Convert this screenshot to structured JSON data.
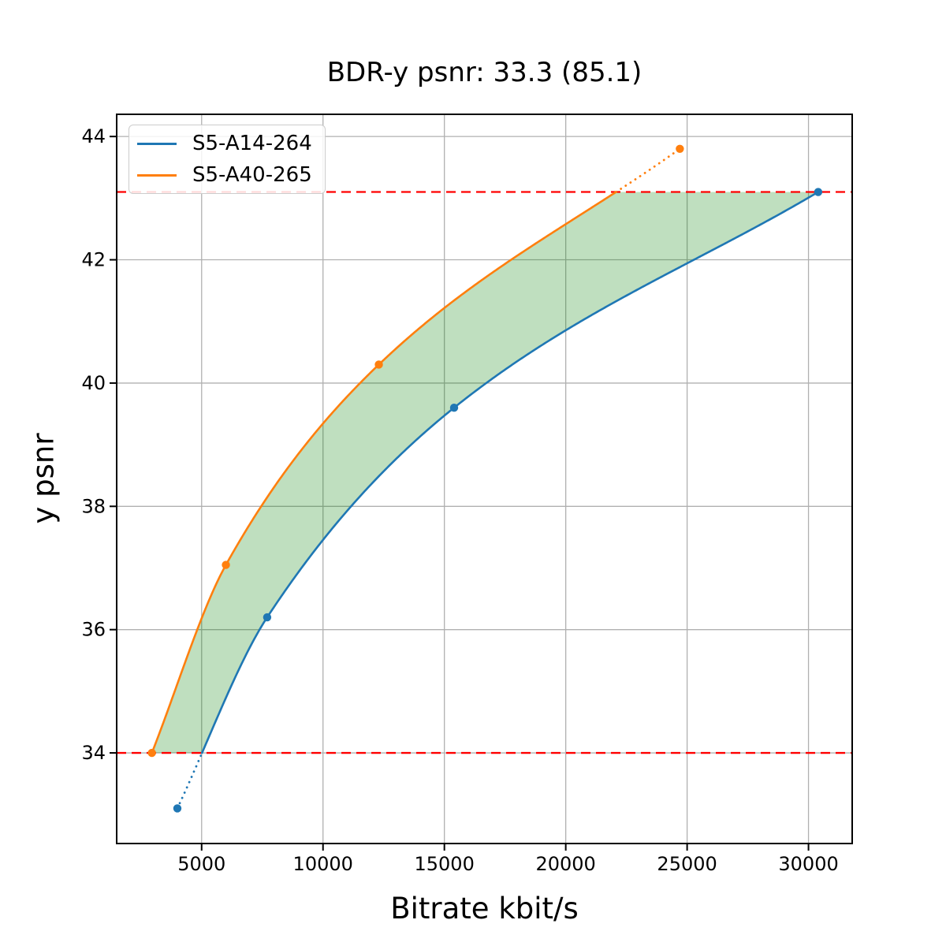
{
  "title": "BDR-y psnr: 33.3 (85.1)",
  "chart_data": {
    "type": "line",
    "title": "BDR-y psnr: 33.3 (85.1)",
    "xlabel": "Bitrate kbit/s",
    "ylabel": "y psnr",
    "xlim": [
      1500,
      31800
    ],
    "ylim": [
      32.53,
      44.36
    ],
    "xticks": [
      5000,
      10000,
      15000,
      20000,
      25000,
      30000
    ],
    "yticks": [
      34,
      36,
      38,
      40,
      42,
      44
    ],
    "grid": true,
    "grid_color": "#b0b0b0",
    "legend_position": "upper left",
    "series": [
      {
        "name": "S5-A14-264",
        "color": "#1f77b4",
        "points": [
          [
            4000,
            33.1
          ],
          [
            7700,
            36.2
          ],
          [
            15400,
            39.6
          ],
          [
            30400,
            43.1
          ]
        ]
      },
      {
        "name": "S5-A40-265",
        "color": "#ff7f0e",
        "points": [
          [
            2950,
            34.0
          ],
          [
            6000,
            37.05
          ],
          [
            12300,
            40.3
          ],
          [
            24700,
            43.8
          ]
        ]
      }
    ],
    "reference_lines": {
      "style": "dashed",
      "color": "#ff0000",
      "values": [
        34.0,
        43.1
      ]
    },
    "shaded_region": {
      "between": [
        "S5-A40-265",
        "S5-A14-264"
      ],
      "y_range": [
        34.0,
        43.1
      ],
      "color": "#008000",
      "opacity": 0.25
    }
  }
}
